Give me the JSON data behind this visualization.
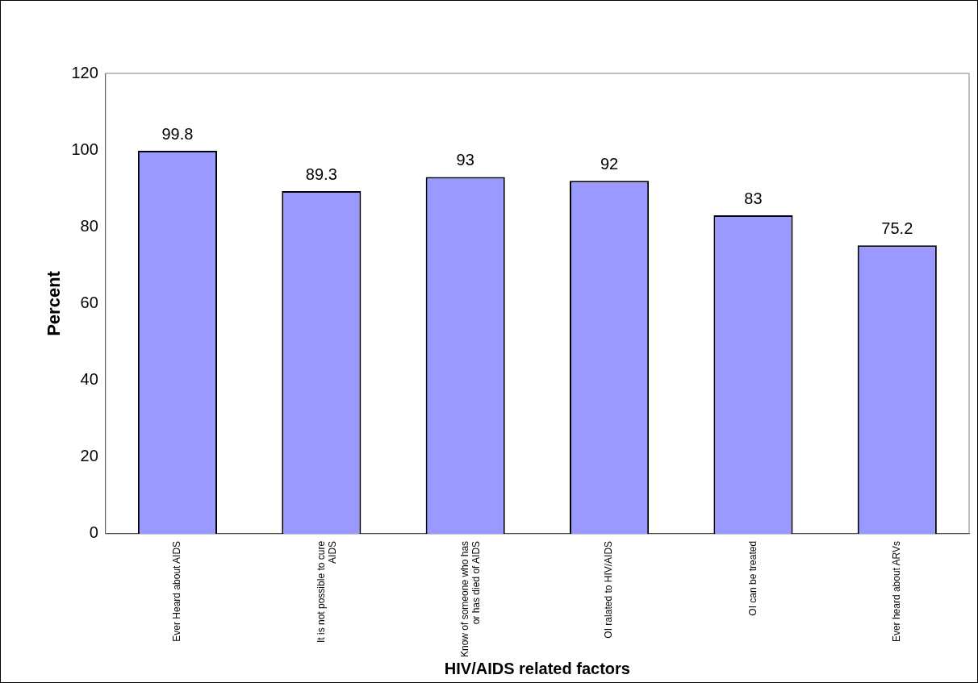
{
  "chart_data": {
    "type": "bar",
    "xlabel": "HIV/AIDS related factors",
    "ylabel": "Percent",
    "categories": [
      "Ever Heard about AIDS",
      "It is not possible to cure AIDS",
      "Know of someone who has or has died of AIDS",
      "OI ralated to HIV/AIDS",
      "OI can be treated",
      "Ever heard about ARVs"
    ],
    "values": [
      99.8,
      89.3,
      93,
      92,
      83,
      75.2
    ],
    "color": "#9999ff",
    "ylim": [
      0,
      120
    ],
    "yticks": [
      0,
      20,
      40,
      60,
      80,
      100,
      120
    ],
    "grid": false,
    "data_labels": true
  }
}
